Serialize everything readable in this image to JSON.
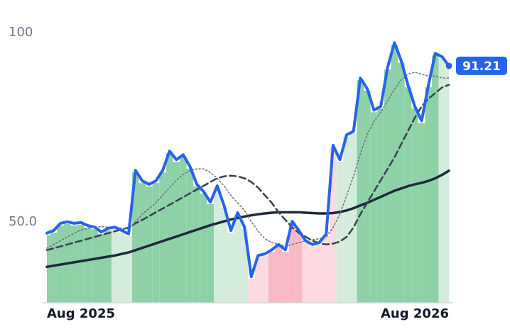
{
  "chart_data": {
    "type": "line",
    "ylim": [
      28.6,
      108.6
    ],
    "yticks": [
      100,
      {
        "value": 50,
        "label": "50.0"
      }
    ],
    "xlim": [
      0,
      59
    ],
    "xticks": [
      {
        "value": 0,
        "label": "Aug 2025"
      },
      {
        "value": 59,
        "label": "Aug 2026"
      }
    ],
    "zones": [
      {
        "from": 0,
        "to": 10,
        "color": "#8fd1a6"
      },
      {
        "from": 10,
        "to": 13,
        "color": "#d5ecdc"
      },
      {
        "from": 13,
        "to": 25,
        "color": "#8fd1a6"
      },
      {
        "from": 25,
        "to": 30,
        "color": "#d5ecdc"
      },
      {
        "from": 30,
        "to": 33,
        "color": "#fbdbe1"
      },
      {
        "from": 33,
        "to": 38,
        "color": "#f7bac5"
      },
      {
        "from": 38,
        "to": 43,
        "color": "#fbdbe1"
      },
      {
        "from": 43,
        "to": 46,
        "color": "#d5ecdc"
      },
      {
        "from": 46,
        "to": 58,
        "color": "#8fd1a6"
      },
      {
        "from": 58,
        "to": 59,
        "color": "#d5ecdc"
      }
    ],
    "series": [
      {
        "color": "#2563eb",
        "style": "solid",
        "width": 4,
        "values": [
          47.0,
          47.7,
          49.6,
          50.0,
          49.6,
          49.8,
          49.0,
          48.6,
          47.3,
          48.3,
          48.6,
          47.7,
          46.8,
          63.6,
          60.8,
          59.9,
          60.8,
          63.6,
          68.7,
          66.4,
          67.7,
          64.6,
          59.9,
          58.0,
          55.2,
          59.5,
          54.3,
          47.7,
          52.4,
          48.6,
          35.5,
          41.1,
          41.5,
          42.6,
          44.0,
          42.6,
          50.1,
          47.7,
          44.9,
          44.0,
          44.5,
          46.8,
          70.2,
          66.4,
          73.0,
          73.9,
          88.0,
          85.2,
          79.5,
          80.5,
          90.8,
          97.3,
          92.6,
          86.1,
          80.5,
          76.7,
          86.1,
          94.5,
          93.6,
          91.21
        ]
      },
      {
        "color": "#6b7280",
        "style": "dotted",
        "width": 1.5,
        "values": [
          43.0,
          44.0,
          45.0,
          46.0,
          47.0,
          47.8,
          48.3,
          48.6,
          48.7,
          48.6,
          48.5,
          48.3,
          48.1,
          50.0,
          52.0,
          53.5,
          55.0,
          57.0,
          59.0,
          61.0,
          62.5,
          63.5,
          64.0,
          64.0,
          63.0,
          61.5,
          59.5,
          57.0,
          55.0,
          53.0,
          50.0,
          47.5,
          45.5,
          44.5,
          44.0,
          43.5,
          44.0,
          44.5,
          45.0,
          45.3,
          45.5,
          46.0,
          48.5,
          52.0,
          57.0,
          62.0,
          68.0,
          73.0,
          76.5,
          79.0,
          82.0,
          85.0,
          87.5,
          89.0,
          89.5,
          89.0,
          88.5,
          88.5,
          88.0,
          88.0
        ]
      },
      {
        "color": "#374151",
        "style": "dashed",
        "width": 2.5,
        "values": [
          42.5,
          43,
          43.5,
          44,
          44.5,
          45,
          45.5,
          46,
          46.5,
          47,
          47.5,
          48,
          48.5,
          49.6,
          50.5,
          51.5,
          52.5,
          53.5,
          54.5,
          55.5,
          56.5,
          57.5,
          58.5,
          59.5,
          60.5,
          61.5,
          62,
          62.2,
          62,
          61.5,
          60.5,
          59,
          57,
          55,
          52.5,
          50.5,
          48.5,
          47,
          46,
          45,
          44.3,
          44,
          44.2,
          44.8,
          46,
          48.5,
          52,
          55,
          58,
          61,
          64,
          67,
          70.5,
          74,
          77.5,
          80.5,
          82.5,
          84,
          85.5,
          86.2
        ]
      },
      {
        "color": "#1e293b",
        "style": "solid",
        "width": 3.5,
        "values": [
          38.1,
          38.4,
          38.7,
          39,
          39.3,
          39.6,
          39.9,
          40.2,
          40.5,
          40.8,
          41.1,
          41.5,
          41.9,
          42.5,
          43.1,
          43.7,
          44.3,
          44.9,
          45.5,
          46.1,
          46.7,
          47.3,
          47.9,
          48.5,
          49.1,
          49.6,
          50.1,
          50.6,
          51,
          51.4,
          51.7,
          52,
          52.2,
          52.4,
          52.5,
          52.5,
          52.5,
          52.5,
          52.4,
          52.3,
          52.2,
          52.2,
          52.3,
          52.6,
          53.0,
          53.6,
          54.3,
          55.0,
          55.8,
          56.6,
          57.4,
          58.2,
          58.8,
          59.4,
          59.9,
          60.3,
          60.8,
          61.5,
          62.4,
          63.5
        ]
      }
    ]
  }
}
